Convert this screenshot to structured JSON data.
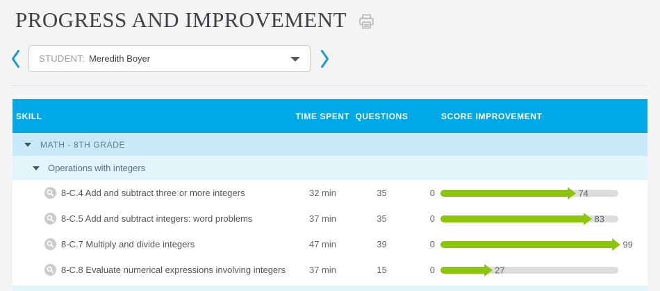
{
  "header": {
    "title": "PROGRESS AND IMPROVEMENT"
  },
  "student_nav": {
    "label": "STUDENT:",
    "name": "Meredith Boyer"
  },
  "table": {
    "columns": {
      "skill": "SKILL",
      "time_spent": "TIME SPENT",
      "questions": "QUESTIONS",
      "score_improvement": "SCORE IMPROVEMENT"
    },
    "groups": [
      {
        "label": "MATH - 8TH GRADE"
      },
      {
        "label": "Operations with integers"
      }
    ],
    "skills": [
      {
        "label": "8-C.4 Add and subtract three or more integers",
        "time_spent": "32 min",
        "questions": "35",
        "score_start": "0",
        "score_improvement": 74
      },
      {
        "label": "8-C.5 Add and subtract integers: word problems",
        "time_spent": "37 min",
        "questions": "35",
        "score_start": "0",
        "score_improvement": 83
      },
      {
        "label": "8-C.7 Multiply and divide integers",
        "time_spent": "47 min",
        "questions": "39",
        "score_start": "0",
        "score_improvement": 99
      },
      {
        "label": "8-C.8 Evaluate numerical expressions involving integers",
        "time_spent": "37 min",
        "questions": "15",
        "score_start": "0",
        "score_improvement": 27
      }
    ]
  },
  "chart_data": {
    "type": "bar",
    "title": "Score improvement per skill",
    "categories": [
      "8-C.4",
      "8-C.5",
      "8-C.7",
      "8-C.8"
    ],
    "values": [
      74,
      83,
      99,
      27
    ],
    "xlim": [
      0,
      100
    ],
    "note": "green arrow length = score improvement from 0, gray track = 0-100 scale"
  },
  "colors": {
    "header_bar": "#00a9e5",
    "group1_bg": "#c8e9f7",
    "group2_bg": "#e3f4fb",
    "arrow_green": "#8dc40e",
    "track_gray": "#dcdcdc",
    "chevron_blue": "#2196d3"
  }
}
